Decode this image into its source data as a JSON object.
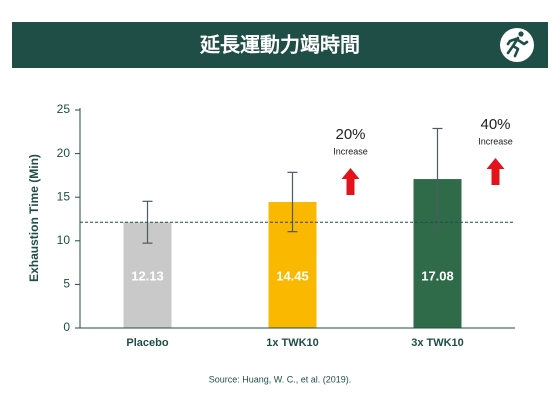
{
  "chart_data": {
    "type": "bar",
    "title": "延長運動力竭時間",
    "y_label": "Exhaustion Time (Min)",
    "categories": [
      "Placebo",
      "1x TWK10",
      "3x TWK10"
    ],
    "values": [
      12.13,
      14.45,
      17.08
    ],
    "errors": [
      2.4,
      3.4,
      5.8
    ],
    "colors": [
      "#c9c9c9",
      "#fbb800",
      "#2f6a49"
    ],
    "ylim": [
      0,
      25
    ],
    "yticks": [
      0,
      5,
      10,
      15,
      20,
      25
    ],
    "reference_line": 12.13,
    "annotations": [
      {
        "text": "20%",
        "label": "Increase"
      },
      {
        "text": "40%",
        "label": "Increase"
      }
    ],
    "source": "Source: Huang, W. C., et al. (2019)."
  }
}
